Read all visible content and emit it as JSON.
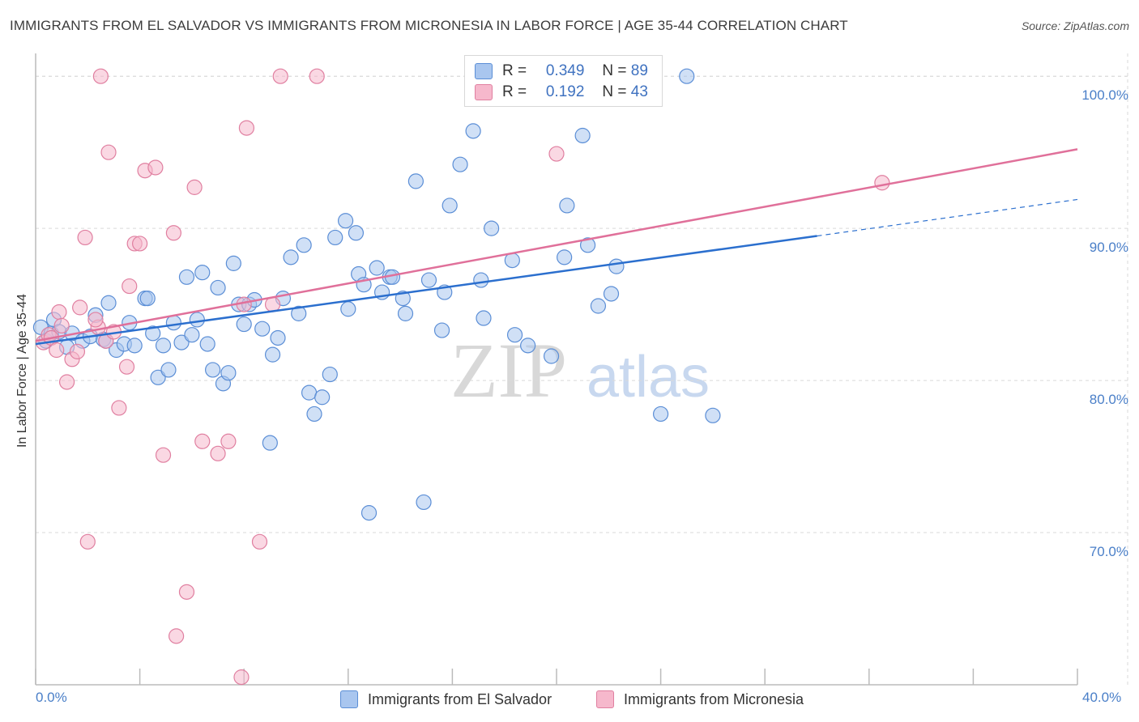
{
  "title": "IMMIGRANTS FROM EL SALVADOR VS IMMIGRANTS FROM MICRONESIA IN LABOR FORCE | AGE 35-44 CORRELATION CHART",
  "source": "Source: ZipAtlas.com",
  "watermark": {
    "zip": "ZIP",
    "atlas": "atlas"
  },
  "legend": {
    "r_label": "R =",
    "n_label": "N =",
    "entries": [
      {
        "r": "0.349",
        "n": "89"
      },
      {
        "r": "0.192",
        "n": "43"
      }
    ]
  },
  "colors": {
    "blue_fill": "#a9c6ef",
    "blue_stroke": "#5b8ed6",
    "blue_line": "#2b6fce",
    "pink_fill": "#f6b8cc",
    "pink_stroke": "#e07fa0",
    "pink_line": "#e0709a",
    "tick_text": "#4a7fc8",
    "grid": "#d9d9d9"
  },
  "chart_data": {
    "type": "scatter",
    "title": "IMMIGRANTS FROM EL SALVADOR VS IMMIGRANTS FROM MICRONESIA IN LABOR FORCE | AGE 35-44 CORRELATION CHART",
    "xlabel": "",
    "ylabel": "In Labor Force | Age 35-44",
    "xlim": [
      0,
      40
    ],
    "ylim": [
      60,
      101.5
    ],
    "x_tick_labels": [
      "0.0%",
      "40.0%"
    ],
    "y_ticks": [
      70,
      80,
      90,
      100
    ],
    "y_tick_labels": [
      "70.0%",
      "80.0%",
      "90.0%",
      "100.0%"
    ],
    "grid": true,
    "legend_position": "top-center",
    "series": [
      {
        "name": "Immigrants from El Salvador",
        "color": "#a9c6ef",
        "trend": {
          "x": [
            0,
            30.0
          ],
          "y": [
            82.4,
            89.5
          ],
          "dashed_to": [
            40.0,
            91.9
          ]
        },
        "points": [
          [
            0.2,
            83.5
          ],
          [
            0.4,
            82.6
          ],
          [
            0.6,
            83.1
          ],
          [
            0.7,
            84.0
          ],
          [
            0.9,
            83.2
          ],
          [
            1.2,
            82.2
          ],
          [
            1.4,
            83.1
          ],
          [
            1.8,
            82.6
          ],
          [
            2.1,
            82.9
          ],
          [
            2.3,
            84.3
          ],
          [
            2.6,
            82.7
          ],
          [
            2.7,
            82.6
          ],
          [
            2.8,
            85.1
          ],
          [
            3.1,
            82.0
          ],
          [
            3.4,
            82.4
          ],
          [
            3.6,
            83.8
          ],
          [
            3.8,
            82.3
          ],
          [
            4.2,
            85.4
          ],
          [
            4.3,
            85.4
          ],
          [
            4.5,
            83.1
          ],
          [
            4.7,
            80.2
          ],
          [
            4.9,
            82.3
          ],
          [
            5.1,
            80.7
          ],
          [
            5.3,
            83.8
          ],
          [
            5.6,
            82.5
          ],
          [
            5.8,
            86.8
          ],
          [
            6.0,
            83.0
          ],
          [
            6.2,
            84.0
          ],
          [
            6.4,
            87.1
          ],
          [
            6.6,
            82.4
          ],
          [
            6.8,
            80.7
          ],
          [
            7.0,
            86.1
          ],
          [
            7.2,
            79.8
          ],
          [
            7.4,
            80.5
          ],
          [
            7.6,
            87.7
          ],
          [
            7.8,
            85.0
          ],
          [
            8.0,
            83.7
          ],
          [
            8.2,
            85.0
          ],
          [
            8.4,
            85.3
          ],
          [
            8.7,
            83.4
          ],
          [
            9.0,
            75.9
          ],
          [
            9.1,
            81.7
          ],
          [
            9.3,
            82.8
          ],
          [
            9.5,
            85.4
          ],
          [
            9.8,
            88.1
          ],
          [
            10.1,
            84.4
          ],
          [
            10.3,
            88.9
          ],
          [
            10.5,
            79.2
          ],
          [
            10.7,
            77.8
          ],
          [
            11.0,
            78.9
          ],
          [
            11.3,
            80.4
          ],
          [
            11.5,
            89.4
          ],
          [
            11.9,
            90.5
          ],
          [
            12.0,
            84.7
          ],
          [
            12.3,
            89.7
          ],
          [
            12.4,
            87.0
          ],
          [
            12.6,
            86.3
          ],
          [
            12.8,
            71.3
          ],
          [
            13.1,
            87.4
          ],
          [
            13.3,
            85.8
          ],
          [
            13.6,
            86.8
          ],
          [
            13.7,
            86.8
          ],
          [
            14.1,
            85.4
          ],
          [
            14.2,
            84.4
          ],
          [
            14.6,
            93.1
          ],
          [
            15.1,
            86.6
          ],
          [
            15.6,
            83.3
          ],
          [
            15.7,
            85.8
          ],
          [
            15.9,
            91.5
          ],
          [
            16.3,
            94.2
          ],
          [
            16.8,
            96.4
          ],
          [
            17.1,
            86.6
          ],
          [
            17.2,
            84.1
          ],
          [
            17.5,
            90.0
          ],
          [
            18.3,
            87.9
          ],
          [
            18.4,
            83.0
          ],
          [
            18.9,
            82.3
          ],
          [
            19.8,
            81.6
          ],
          [
            20.3,
            88.1
          ],
          [
            20.4,
            91.5
          ],
          [
            21.0,
            96.1
          ],
          [
            21.2,
            88.9
          ],
          [
            21.6,
            84.9
          ],
          [
            22.1,
            85.7
          ],
          [
            22.3,
            87.5
          ],
          [
            24.0,
            77.8
          ],
          [
            25.0,
            100.0
          ],
          [
            26.0,
            77.7
          ],
          [
            14.9,
            72.0
          ]
        ]
      },
      {
        "name": "Immigrants from Micronesia",
        "color": "#f6b8cc",
        "trend": {
          "x": [
            0,
            40.0
          ],
          "y": [
            82.6,
            95.2
          ]
        },
        "points": [
          [
            0.3,
            82.5
          ],
          [
            0.5,
            83.0
          ],
          [
            0.6,
            82.8
          ],
          [
            0.8,
            82.0
          ],
          [
            0.9,
            84.5
          ],
          [
            1.2,
            79.9
          ],
          [
            1.4,
            81.4
          ],
          [
            1.6,
            81.9
          ],
          [
            1.7,
            84.8
          ],
          [
            1.9,
            89.4
          ],
          [
            2.0,
            69.4
          ],
          [
            2.4,
            83.5
          ],
          [
            2.5,
            100.0
          ],
          [
            2.7,
            82.6
          ],
          [
            2.8,
            95.0
          ],
          [
            3.0,
            83.2
          ],
          [
            3.2,
            78.2
          ],
          [
            3.5,
            80.9
          ],
          [
            3.6,
            86.2
          ],
          [
            3.8,
            89.0
          ],
          [
            4.0,
            89.0
          ],
          [
            4.2,
            93.8
          ],
          [
            4.6,
            94.0
          ],
          [
            4.9,
            75.1
          ],
          [
            5.3,
            89.7
          ],
          [
            5.4,
            63.2
          ],
          [
            5.8,
            66.1
          ],
          [
            6.1,
            92.7
          ],
          [
            6.4,
            76.0
          ],
          [
            7.0,
            75.2
          ],
          [
            7.4,
            76.0
          ],
          [
            7.9,
            60.5
          ],
          [
            8.1,
            96.6
          ],
          [
            8.0,
            85.0
          ],
          [
            8.6,
            69.4
          ],
          [
            9.1,
            85.0
          ],
          [
            9.4,
            100.0
          ],
          [
            10.8,
            100.0
          ],
          [
            18.0,
            100.0
          ],
          [
            20.0,
            94.9
          ],
          [
            32.5,
            93.0
          ],
          [
            2.3,
            84.0
          ],
          [
            1.0,
            83.6
          ]
        ]
      }
    ]
  },
  "bottom_legend": [
    "Immigrants from El Salvador",
    "Immigrants from Micronesia"
  ]
}
